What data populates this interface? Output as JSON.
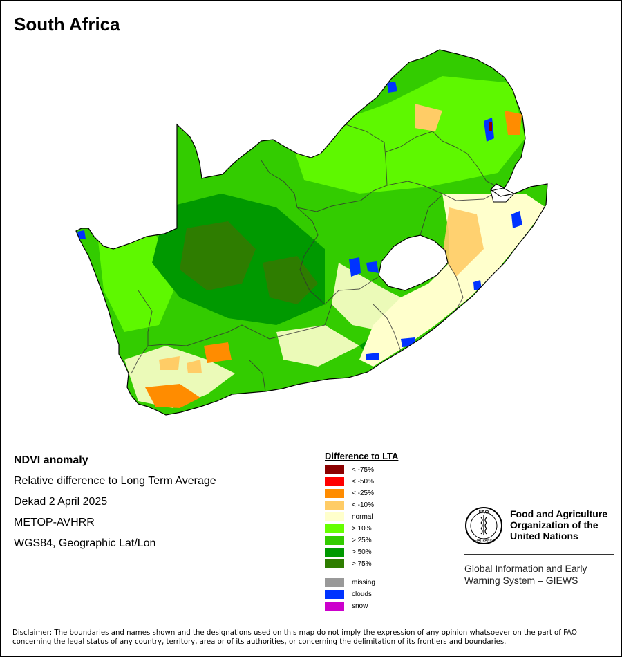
{
  "title": "South Africa",
  "info": {
    "product": "NDVI anomaly",
    "description": "Relative difference to Long Term Average",
    "period": "Dekad 2 April 2025",
    "sensor": "METOP-AVHRR",
    "projection": "WGS84, Geographic Lat/Lon"
  },
  "legend": {
    "title": "Difference to LTA",
    "classes": [
      {
        "label": "< -75%",
        "color": "#8b0000"
      },
      {
        "label": "< -50%",
        "color": "#ff0000"
      },
      {
        "label": "< -25%",
        "color": "#ff8c00"
      },
      {
        "label": "< -10%",
        "color": "#ffcc66"
      },
      {
        "label": "normal",
        "color": "#ffffcc"
      },
      {
        "label": "> 10%",
        "color": "#66ff00"
      },
      {
        "label": "> 25%",
        "color": "#33cc00"
      },
      {
        "label": "> 50%",
        "color": "#009900"
      },
      {
        "label": "> 75%",
        "color": "#2e7d00"
      }
    ],
    "extra": [
      {
        "label": "missing",
        "color": "#999999"
      },
      {
        "label": "clouds",
        "color": "#0033ff"
      },
      {
        "label": "snow",
        "color": "#cc00cc"
      }
    ]
  },
  "organization": {
    "emblem_text": "FAO",
    "emblem_motto": "FIAT PANIS",
    "name_line1": "Food and Agriculture",
    "name_line2": "Organization of the",
    "name_line3": "United Nations",
    "program_line1": "Global Information and Early",
    "program_line2": "Warning System – GIEWS"
  },
  "disclaimer": "Disclaimer: The boundaries and names shown and the designations used on this map do not imply the expression of any opinion whatsoever on the part of FAO concerning the legal status of any country, territory, area or of its authorities, or concerning the delimitation of its frontiers and boundaries."
}
